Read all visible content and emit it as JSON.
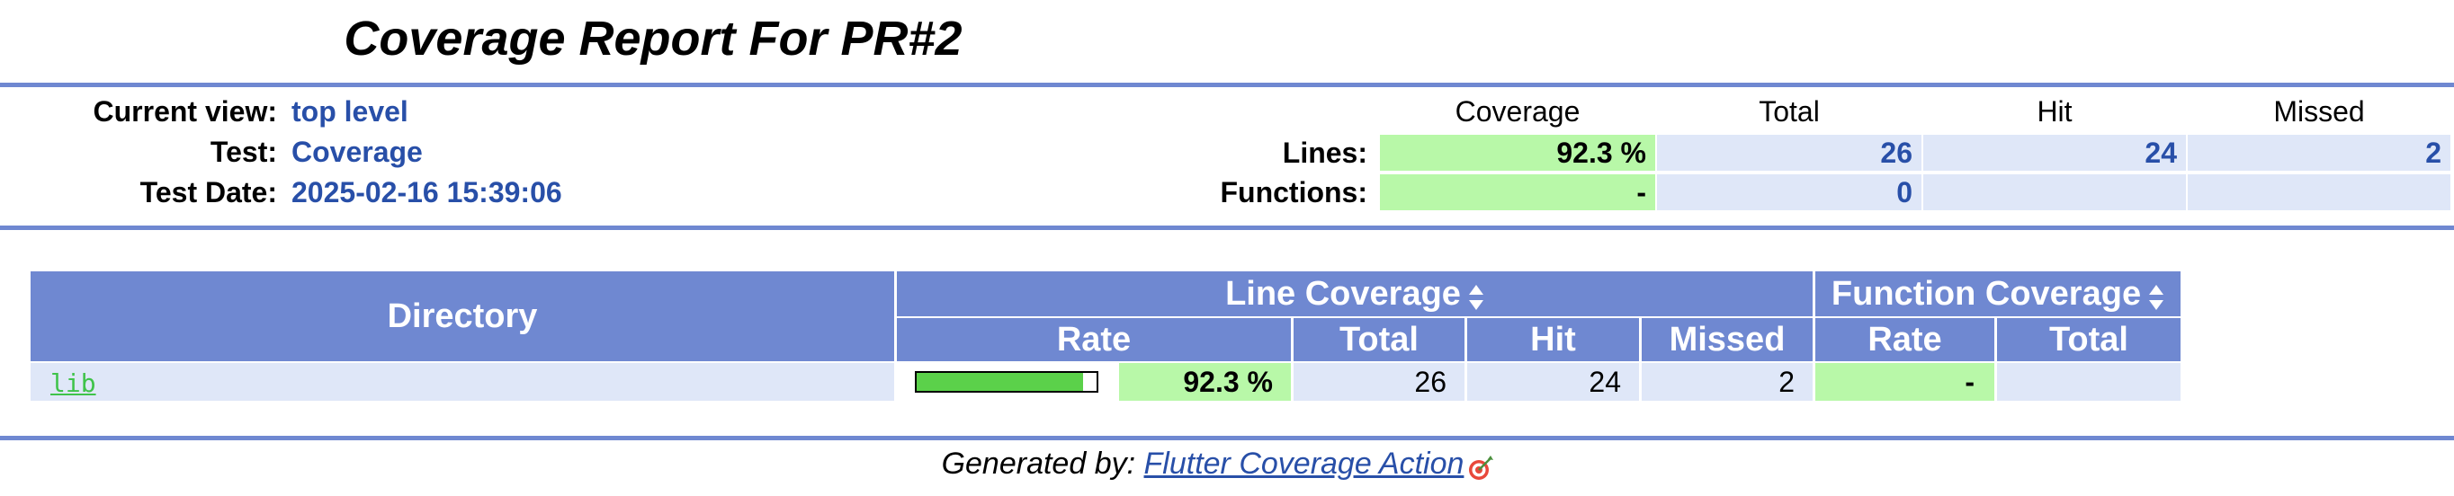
{
  "title": "Coverage Report For PR#2",
  "summary": {
    "current_view_label": "Current view:",
    "current_view_value": "top level",
    "test_label": "Test:",
    "test_value": "Coverage",
    "date_label": "Test Date:",
    "date_value": "2025-02-16 15:39:06",
    "headers": {
      "coverage": "Coverage",
      "total": "Total",
      "hit": "Hit",
      "missed": "Missed"
    },
    "lines": {
      "label": "Lines:",
      "coverage": "92.3 %",
      "total": "26",
      "hit": "24",
      "missed": "2"
    },
    "functions": {
      "label": "Functions:",
      "coverage": "-",
      "total": "0",
      "hit": "",
      "missed": ""
    }
  },
  "table": {
    "headers": {
      "directory": "Directory",
      "line_coverage": "Line Coverage",
      "function_coverage": "Function Coverage",
      "rate": "Rate",
      "total": "Total",
      "hit": "Hit",
      "missed": "Missed",
      "fn_rate": "Rate",
      "fn_total": "Total"
    },
    "rows": [
      {
        "directory": "lib",
        "line_rate_percent": 92.3,
        "line_rate": "92.3 %",
        "total": "26",
        "hit": "24",
        "missed": "2",
        "fn_rate": "-",
        "fn_total": ""
      }
    ]
  },
  "footer": {
    "prefix": "Generated by:",
    "link_text": "Flutter Coverage Action"
  },
  "icons": {
    "sort": "sort-up-down-icon",
    "footer": "target-icon"
  },
  "colors": {
    "rule": "#6f88d1",
    "header_bg": "#6f88d1",
    "value_blue": "#284fa8",
    "coverage_green": "#b8f8a8",
    "cell_blue": "#dfe7f8",
    "bar_fill": "#5bd14a",
    "dir_link": "#3fc34a"
  }
}
